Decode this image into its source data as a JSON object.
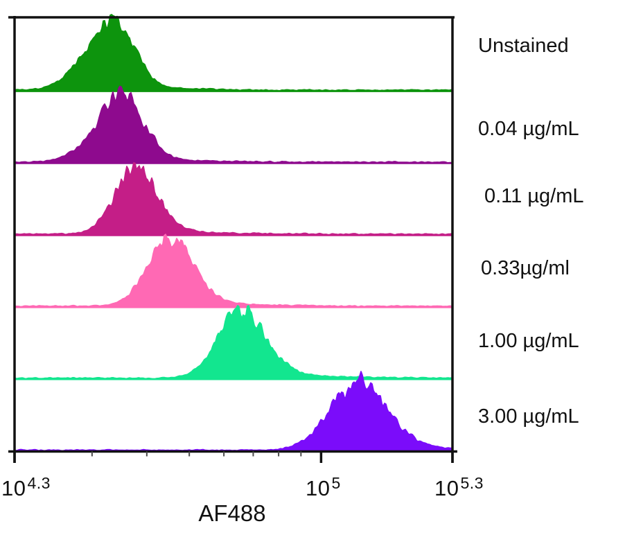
{
  "chart_data": {
    "type": "area",
    "subtype": "flow-cytometry-histogram-ridgeline",
    "title": "",
    "xlabel": "AF488",
    "ylabel": "",
    "x_scale": "log10",
    "x_range_exp": [
      4.3,
      5.3
    ],
    "grid": false,
    "legend_position": "right-side-labels",
    "x_ticks": [
      {
        "base": "10",
        "sup": "4.3",
        "exp": 4.3
      },
      {
        "base": "10",
        "sup": "5",
        "exp": 5.0
      },
      {
        "base": "10",
        "sup": "5.3",
        "exp": 5.3
      }
    ],
    "minor_ticks_exp": [
      4.477,
      4.602,
      4.699,
      4.778,
      4.845,
      4.903,
      4.954
    ],
    "series": [
      {
        "label": "Unstained",
        "color": "#0d940d",
        "peak_value": 34000,
        "peak_exp": 4.528,
        "sigma_left_exp": 0.064,
        "sigma_right_exp": 0.044,
        "rel_height": 1.0,
        "seed": 101
      },
      {
        "label": "0.04 µg/mL",
        "color": "#8e0a8e",
        "peak_value": 35000,
        "peak_exp": 4.545,
        "sigma_left_exp": 0.06,
        "sigma_right_exp": 0.048,
        "rel_height": 0.93,
        "seed": 202
      },
      {
        "label": "0.11 µg/mL",
        "color": "#c41e87",
        "peak_value": 38000,
        "peak_exp": 4.575,
        "sigma_left_exp": 0.047,
        "sigma_right_exp": 0.05,
        "rel_height": 0.9,
        "seed": 303
      },
      {
        "label": "0.33µg/ml",
        "color": "#ff69b4",
        "peak_value": 45000,
        "peak_exp": 4.657,
        "sigma_left_exp": 0.051,
        "sigma_right_exp": 0.052,
        "rel_height": 0.95,
        "seed": 404
      },
      {
        "label": "1.00 µg/mL",
        "color": "#12e68f",
        "peak_value": 65000,
        "peak_exp": 4.813,
        "sigma_left_exp": 0.05,
        "sigma_right_exp": 0.058,
        "rel_height": 0.97,
        "seed": 505
      },
      {
        "label": "3.00 µg/mL",
        "color": "#7b0cfa",
        "peak_value": 120000,
        "peak_exp": 5.081,
        "sigma_left_exp": 0.063,
        "sigma_right_exp": 0.068,
        "rel_height": 0.94,
        "seed": 606
      }
    ]
  }
}
